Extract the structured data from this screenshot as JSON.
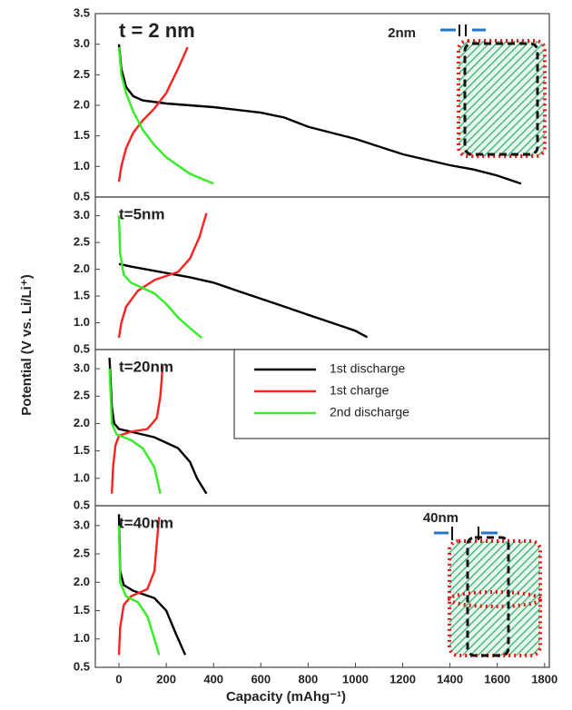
{
  "axes": {
    "xlabel": "Capacity (mAhg⁻¹)",
    "ylabel": "Potential (V vs. Li/Li⁺)"
  },
  "chart_data": [
    {
      "type": "line",
      "title": "t = 2 nm",
      "annotation": "2nm",
      "xlim": [
        -100,
        1820
      ],
      "ylim": [
        0.5,
        3.5
      ],
      "yticks": [
        {
          "value": 0.5,
          "label": "0.5"
        },
        {
          "value": 1,
          "label": "1.0"
        },
        1.5,
        {
          "value": 2,
          "label": "2.0"
        },
        2.5,
        {
          "value": 3,
          "label": "3.0"
        },
        3.5
      ],
      "series": [
        {
          "color": "#000000",
          "x": [
            0,
            10,
            30,
            60,
            100,
            200,
            400,
            600,
            700,
            800,
            1000,
            1200,
            1400,
            1500,
            1600,
            1700
          ],
          "values": [
            3.0,
            2.6,
            2.3,
            2.15,
            2.08,
            2.03,
            1.97,
            1.88,
            1.8,
            1.65,
            1.45,
            1.2,
            1.02,
            0.95,
            0.85,
            0.72
          ]
        },
        {
          "color": "#ff2020",
          "x": [
            0,
            10,
            30,
            60,
            100,
            150,
            200,
            250,
            290
          ],
          "values": [
            0.75,
            1.0,
            1.3,
            1.55,
            1.75,
            1.95,
            2.2,
            2.6,
            2.95
          ]
        },
        {
          "color": "#33ee22",
          "x": [
            0,
            10,
            30,
            60,
            100,
            150,
            200,
            300,
            400
          ],
          "values": [
            2.95,
            2.5,
            2.2,
            1.9,
            1.6,
            1.35,
            1.15,
            0.88,
            0.72
          ]
        }
      ]
    },
    {
      "type": "line",
      "title": "t=5nm",
      "xlim": [
        -100,
        1820
      ],
      "ylim": [
        0.5,
        3.35
      ],
      "yticks": [
        {
          "value": 0.5,
          "label": "0.5"
        },
        {
          "value": 1,
          "label": "1.0"
        },
        1.5,
        {
          "value": 2,
          "label": "2.0"
        },
        2.5,
        {
          "value": 3,
          "label": "3.0"
        }
      ],
      "series": [
        {
          "color": "#000000",
          "x": [
            0,
            50,
            150,
            300,
            400,
            500,
            600,
            700,
            800,
            900,
            1000,
            1050
          ],
          "values": [
            2.1,
            2.05,
            1.97,
            1.85,
            1.75,
            1.6,
            1.45,
            1.3,
            1.15,
            1.0,
            0.85,
            0.73
          ]
        },
        {
          "color": "#ff2020",
          "x": [
            0,
            10,
            30,
            80,
            150,
            250,
            300,
            340,
            370
          ],
          "values": [
            0.72,
            1.0,
            1.3,
            1.6,
            1.8,
            1.95,
            2.2,
            2.6,
            3.05
          ]
        },
        {
          "color": "#33ee22",
          "x": [
            0,
            5,
            20,
            50,
            100,
            150,
            200,
            250,
            300,
            350
          ],
          "values": [
            3.0,
            2.3,
            1.9,
            1.75,
            1.65,
            1.55,
            1.35,
            1.1,
            0.9,
            0.72
          ]
        }
      ]
    },
    {
      "type": "line",
      "title": "t=20nm",
      "xlim": [
        -100,
        1820
      ],
      "ylim": [
        0.5,
        3.35
      ],
      "yticks": [
        {
          "value": 0.5,
          "label": "0.5"
        },
        {
          "value": 1,
          "label": "1.0"
        },
        1.5,
        {
          "value": 2,
          "label": "2.0"
        },
        2.5,
        {
          "value": 3,
          "label": "3.0"
        }
      ],
      "legend": "top-right",
      "series": [
        {
          "name": "1st discharge",
          "color": "#000000",
          "x": [
            -40,
            -30,
            -20,
            0,
            50,
            150,
            250,
            300,
            330,
            370
          ],
          "values": [
            3.2,
            2.3,
            2.0,
            1.9,
            1.85,
            1.75,
            1.55,
            1.3,
            1.0,
            0.72
          ]
        },
        {
          "name": "1st charge",
          "color": "#ff2020",
          "x": [
            -30,
            -25,
            -15,
            0,
            50,
            120,
            160,
            175,
            185
          ],
          "values": [
            0.72,
            1.2,
            1.6,
            1.78,
            1.85,
            1.9,
            2.1,
            2.5,
            3.05
          ]
        },
        {
          "name": "2nd discharge",
          "color": "#33ee22",
          "x": [
            -40,
            -30,
            -10,
            50,
            100,
            150,
            175
          ],
          "values": [
            3.0,
            2.0,
            1.8,
            1.7,
            1.55,
            1.2,
            0.72
          ]
        }
      ]
    },
    {
      "type": "line",
      "title": "t=40nm",
      "annotation": "40nm",
      "xlim": [
        -100,
        1820
      ],
      "ylim": [
        0.5,
        3.35
      ],
      "yticks": [
        {
          "value": 0.5,
          "label": "0.5"
        },
        {
          "value": 1,
          "label": "1.0"
        },
        1.5,
        {
          "value": 2,
          "label": "2.0"
        },
        2.5,
        {
          "value": 3,
          "label": "3.0"
        }
      ],
      "xticks": [
        0,
        200,
        400,
        600,
        800,
        1000,
        1200,
        1400,
        1600,
        1800
      ],
      "series": [
        {
          "color": "#000000",
          "x": [
            0,
            5,
            20,
            60,
            150,
            200,
            240,
            280
          ],
          "values": [
            3.2,
            2.2,
            1.95,
            1.85,
            1.72,
            1.5,
            1.1,
            0.72
          ]
        },
        {
          "color": "#ff2020",
          "x": [
            0,
            5,
            20,
            50,
            120,
            150,
            160,
            170
          ],
          "values": [
            0.72,
            1.2,
            1.6,
            1.75,
            1.88,
            2.2,
            2.7,
            3.15
          ]
        },
        {
          "color": "#33ee22",
          "x": [
            0,
            5,
            30,
            80,
            120,
            150,
            170
          ],
          "values": [
            3.0,
            2.0,
            1.75,
            1.65,
            1.4,
            1.0,
            0.72
          ]
        }
      ]
    }
  ]
}
